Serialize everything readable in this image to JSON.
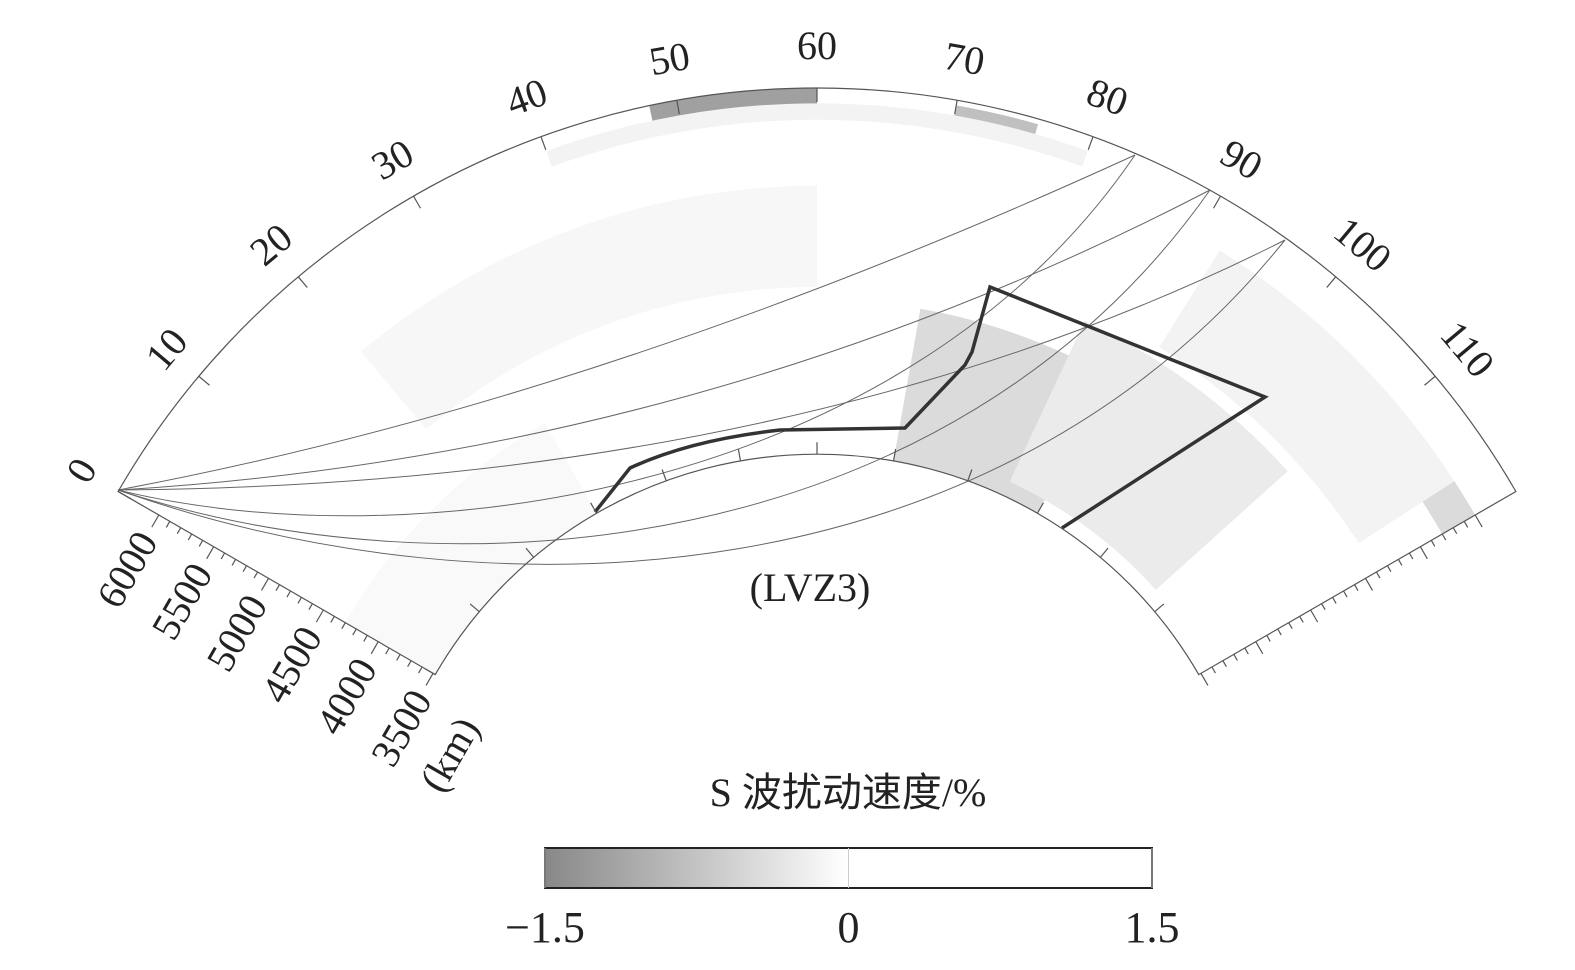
{
  "chart_data": {
    "type": "polar-section",
    "title": "S 波扰动速度/%",
    "annotation": "(LVZ3)",
    "xlim": [
      0,
      120
    ],
    "xticks": [
      0,
      10,
      20,
      30,
      40,
      50,
      60,
      70,
      80,
      90,
      100,
      110
    ],
    "rlim": [
      3480,
      6371
    ],
    "rticks": [
      6000,
      5500,
      5000,
      4500,
      4000,
      3500
    ],
    "r_unit": "(km)",
    "cells": [
      [
        48,
        60,
        6230,
        6371,
        -1.2
      ],
      [
        70,
        76,
        6220,
        6330,
        -0.8
      ],
      [
        40,
        80,
        6120,
        6250,
        -0.15
      ],
      [
        70,
        90,
        3480,
        4700,
        -0.45
      ],
      [
        85,
        108,
        3600,
        5000,
        -0.25
      ],
      [
        20,
        60,
        4800,
        5600,
        -0.1
      ],
      [
        92,
        117,
        5100,
        6000,
        -0.15
      ],
      [
        117,
        120,
        5700,
        6000,
        -0.45
      ],
      [
        0,
        30,
        3480,
        4300,
        -0.08
      ]
    ],
    "colorbar": {
      "lim": [
        -1.5,
        1.5
      ],
      "ticks": [
        {
          "value": -1.5,
          "label": "−1.5"
        },
        0,
        1.5
      ],
      "colors": [
        "#888888",
        "#ffffff",
        "#ffffff"
      ]
    }
  }
}
